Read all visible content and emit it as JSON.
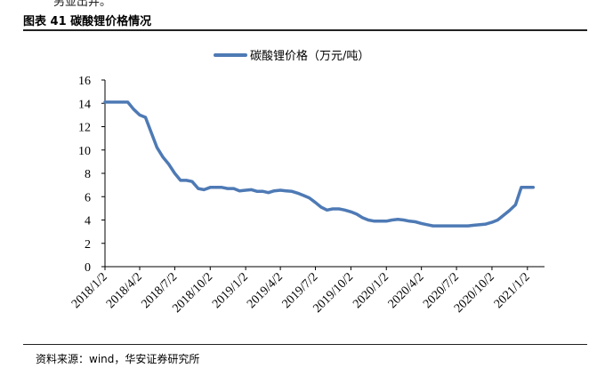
{
  "header": {
    "cut_text": "另並出井。",
    "figure_label": "图表 41 碳酸锂价格情况"
  },
  "footer": {
    "source": "资料来源：wind，华安证券研究所"
  },
  "colors": {
    "series": "#4e7ab5",
    "axis": "#000000",
    "rule": "#222222"
  },
  "chart_data": {
    "type": "line",
    "title": "",
    "xlabel": "",
    "ylabel": "",
    "ylim": [
      0,
      16
    ],
    "yticks": [
      0,
      2,
      4,
      6,
      8,
      10,
      12,
      14,
      16
    ],
    "grid": false,
    "legend": "top-center",
    "xtick_labels": [
      "2018/1/2",
      "2018/4/2",
      "2018/7/2",
      "2018/10/2",
      "2019/1/2",
      "2019/4/2",
      "2019/7/2",
      "2019/10/2",
      "2020/1/2",
      "2020/4/2",
      "2020/7/2",
      "2020/10/2",
      "2021/1/2"
    ],
    "series": [
      {
        "name": "碳酸锂价格（万元/吨）",
        "color": "#4e7ab5",
        "x": [
          "2018/1/2",
          "2018/1/17",
          "2018/2/1",
          "2018/2/16",
          "2018/3/2",
          "2018/3/17",
          "2018/4/2",
          "2018/4/17",
          "2018/5/2",
          "2018/5/17",
          "2018/6/1",
          "2018/6/16",
          "2018/7/2",
          "2018/7/17",
          "2018/8/1",
          "2018/8/16",
          "2018/9/1",
          "2018/9/16",
          "2018/10/2",
          "2018/10/17",
          "2018/11/1",
          "2018/11/16",
          "2018/12/2",
          "2018/12/17",
          "2019/1/2",
          "2019/1/17",
          "2019/2/1",
          "2019/2/16",
          "2019/3/2",
          "2019/3/17",
          "2019/4/2",
          "2019/4/17",
          "2019/5/2",
          "2019/5/17",
          "2019/6/1",
          "2019/6/16",
          "2019/7/2",
          "2019/7/17",
          "2019/8/1",
          "2019/8/16",
          "2019/9/1",
          "2019/9/16",
          "2019/10/2",
          "2019/10/17",
          "2019/11/1",
          "2019/11/16",
          "2019/12/2",
          "2019/12/17",
          "2020/1/2",
          "2020/1/17",
          "2020/2/1",
          "2020/2/16",
          "2020/3/2",
          "2020/3/17",
          "2020/4/2",
          "2020/4/17",
          "2020/5/2",
          "2020/5/17",
          "2020/6/1",
          "2020/6/16",
          "2020/7/2",
          "2020/7/17",
          "2020/8/1",
          "2020/8/16",
          "2020/9/1",
          "2020/9/16",
          "2020/10/2",
          "2020/10/17",
          "2020/11/1",
          "2020/11/16",
          "2020/12/2",
          "2020/12/17",
          "2021/1/2",
          "2021/1/17"
        ],
        "values": [
          14.1,
          14.1,
          14.1,
          14.1,
          14.1,
          13.5,
          13.0,
          12.8,
          11.5,
          10.2,
          9.4,
          8.8,
          8.0,
          7.4,
          7.4,
          7.3,
          6.7,
          6.6,
          6.8,
          6.8,
          6.8,
          6.7,
          6.7,
          6.5,
          6.55,
          6.6,
          6.45,
          6.45,
          6.35,
          6.5,
          6.55,
          6.5,
          6.45,
          6.3,
          6.1,
          5.9,
          5.5,
          5.1,
          4.85,
          4.95,
          4.95,
          4.85,
          4.7,
          4.5,
          4.2,
          4.0,
          3.9,
          3.9,
          3.9,
          4.0,
          4.05,
          4.0,
          3.9,
          3.85,
          3.7,
          3.6,
          3.5,
          3.5,
          3.5,
          3.5,
          3.5,
          3.5,
          3.5,
          3.55,
          3.6,
          3.65,
          3.8,
          4.0,
          4.4,
          4.8,
          5.3,
          6.8,
          6.8,
          6.8
        ]
      }
    ]
  }
}
